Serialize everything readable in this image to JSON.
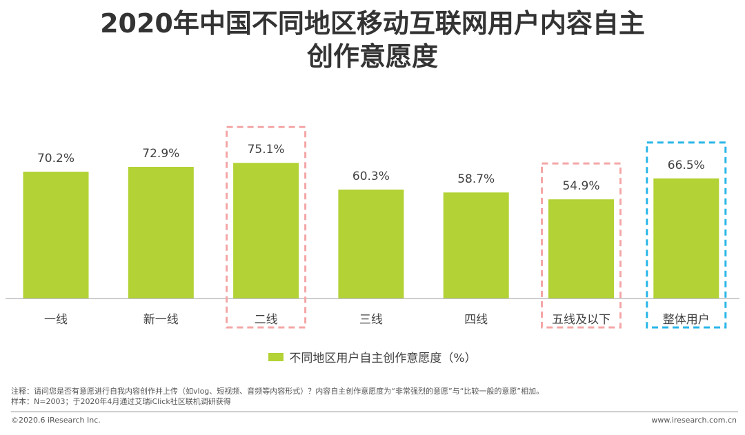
{
  "title_lines": [
    "2020年中国不同地区移动互联网用户内容自主",
    "创作意愿度"
  ],
  "chart_data": {
    "type": "bar",
    "categories": [
      "一线",
      "新一线",
      "二线",
      "三线",
      "四线",
      "五线及以下",
      "整体用户"
    ],
    "series": [
      {
        "name": "不同地区用户自主创作意愿度（%）",
        "values": [
          70.2,
          72.9,
          75.1,
          60.3,
          58.7,
          54.9,
          66.5
        ]
      }
    ],
    "value_labels": [
      "70.2%",
      "72.9%",
      "75.1%",
      "60.3%",
      "58.7%",
      "54.9%",
      "66.5%"
    ],
    "ylim": [
      0,
      100
    ],
    "grid": false,
    "legend_position": "bottom",
    "highlights": [
      {
        "category": "二线",
        "color": "#F4A6A6",
        "style": "dashed"
      },
      {
        "category": "五线及以下",
        "color": "#F4A6A6",
        "style": "dashed"
      },
      {
        "category": "整体用户",
        "color": "#29B6E8",
        "style": "dashed"
      }
    ]
  },
  "colors": {
    "bar": "#B2D235",
    "axis": "#9E9E9E",
    "highlight_red": "#F4A6A6",
    "highlight_blue": "#29B6E8"
  },
  "legend": {
    "label": "不同地区用户自主创作意愿度（%）"
  },
  "notes": {
    "line1": "注释：请问您是否有意愿进行自我内容创作并上传（如vlog、短视频、音频等内容形式）？内容自主创作意愿度为“非常强烈的意愿”与“比较一般的意愿”相加。",
    "line2": "样本：N=2003；于2020年4月通过艾瑞iClick社区联机调研获得"
  },
  "footer": {
    "copyright": "©2020.6 iResearch Inc.",
    "website": "www.iresearch.com.cn"
  }
}
